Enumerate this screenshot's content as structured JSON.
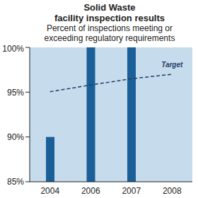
{
  "chart_data": {
    "type": "bar",
    "title": [
      "Solid Waste",
      "facility inspection results"
    ],
    "subtitle": [
      "Percent of inspections meeting or",
      "exceeding regulatory requirements"
    ],
    "categories": [
      "2004",
      "2006",
      "2007",
      "2008"
    ],
    "series": [
      {
        "type": "bar",
        "color": "#1b5f98",
        "values": [
          90,
          100,
          100,
          null
        ]
      },
      {
        "name": "Target",
        "type": "line",
        "line_style": "dashed",
        "color": "#1f3f66",
        "values": [
          95.05,
          95.8,
          96.5,
          97.0
        ]
      }
    ],
    "ylim": [
      85,
      100
    ],
    "yticks": [
      {
        "value": 85,
        "label": "85%"
      },
      {
        "value": 90,
        "label": "90%"
      },
      {
        "value": 95,
        "label": "95%"
      },
      {
        "value": 100,
        "label": "100%"
      }
    ],
    "grid": false
  }
}
